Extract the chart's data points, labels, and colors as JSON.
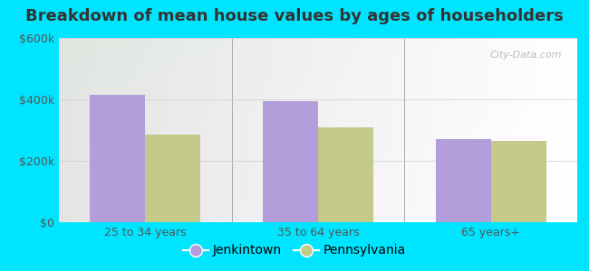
{
  "title": "Breakdown of mean house values by ages of householders",
  "categories": [
    "25 to 34 years",
    "35 to 64 years",
    "65 years+"
  ],
  "jenkintown_values": [
    415000,
    395000,
    270000
  ],
  "pennsylvania_values": [
    285000,
    310000,
    265000
  ],
  "jenkintown_color": "#b39ddb",
  "pennsylvania_color": "#c5c98a",
  "ylim": [
    0,
    600000
  ],
  "yticks": [
    0,
    200000,
    400000,
    600000
  ],
  "ytick_labels": [
    "$0",
    "$200k",
    "$400k",
    "$600k"
  ],
  "legend_labels": [
    "Jenkintown",
    "Pennsylvania"
  ],
  "background_outer": "#00e5ff",
  "bar_width": 0.32,
  "title_fontsize": 13,
  "tick_fontsize": 9,
  "legend_fontsize": 10,
  "watermark_text": "City-Data.com",
  "inner_bg_color": "#e8f5e9"
}
